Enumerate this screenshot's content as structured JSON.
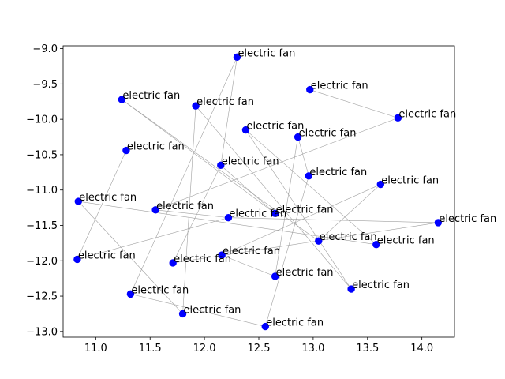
{
  "chart_data": {
    "type": "scatter",
    "title": "",
    "xlabel": "",
    "ylabel": "",
    "xlim": [
      10.7,
      14.3
    ],
    "ylim": [
      -13.08,
      -8.96
    ],
    "xticks": [
      11.0,
      11.5,
      12.0,
      12.5,
      13.0,
      13.5,
      14.0
    ],
    "xtick_labels": [
      "11.0",
      "11.5",
      "12.0",
      "12.5",
      "13.0",
      "13.5",
      "14.0"
    ],
    "yticks": [
      -9.0,
      -9.5,
      -10.0,
      -10.5,
      -11.0,
      -11.5,
      -12.0,
      -12.5,
      -13.0
    ],
    "ytick_labels": [
      "−9.0",
      "−9.5",
      "−10.0",
      "−10.5",
      "−11.0",
      "−11.5",
      "−12.0",
      "−12.5",
      "−13.0"
    ],
    "grid": false,
    "marker_color": "#0000ff",
    "edge_color": "#a0a0a0",
    "points": [
      {
        "x": 12.3,
        "y": -9.12,
        "label": "electric fan"
      },
      {
        "x": 12.97,
        "y": -9.58,
        "label": "electric fan"
      },
      {
        "x": 11.24,
        "y": -9.72,
        "label": "electric fan"
      },
      {
        "x": 11.92,
        "y": -9.81,
        "label": "electric fan"
      },
      {
        "x": 13.78,
        "y": -9.98,
        "label": "electric fan"
      },
      {
        "x": 12.38,
        "y": -10.15,
        "label": "electric fan"
      },
      {
        "x": 12.86,
        "y": -10.25,
        "label": "electric fan"
      },
      {
        "x": 11.28,
        "y": -10.44,
        "label": "electric fan"
      },
      {
        "x": 12.15,
        "y": -10.65,
        "label": "electric fan"
      },
      {
        "x": 12.96,
        "y": -10.8,
        "label": "electric fan"
      },
      {
        "x": 13.62,
        "y": -10.92,
        "label": "electric fan"
      },
      {
        "x": 10.84,
        "y": -11.16,
        "label": "electric fan"
      },
      {
        "x": 11.55,
        "y": -11.28,
        "label": "electric fan"
      },
      {
        "x": 12.65,
        "y": -11.33,
        "label": "electric fan"
      },
      {
        "x": 12.22,
        "y": -11.39,
        "label": "electric fan"
      },
      {
        "x": 14.15,
        "y": -11.46,
        "label": "electric fan"
      },
      {
        "x": 13.05,
        "y": -11.72,
        "label": "electric fan"
      },
      {
        "x": 13.58,
        "y": -11.77,
        "label": "electric fan"
      },
      {
        "x": 12.16,
        "y": -11.92,
        "label": "electric fan"
      },
      {
        "x": 10.83,
        "y": -11.98,
        "label": "electric fan"
      },
      {
        "x": 11.71,
        "y": -12.03,
        "label": "electric fan"
      },
      {
        "x": 12.65,
        "y": -12.22,
        "label": "electric fan"
      },
      {
        "x": 13.35,
        "y": -12.4,
        "label": "electric fan"
      },
      {
        "x": 11.32,
        "y": -12.47,
        "label": "electric fan"
      },
      {
        "x": 11.8,
        "y": -12.75,
        "label": "electric fan"
      },
      {
        "x": 12.56,
        "y": -12.93,
        "label": "electric fan"
      }
    ],
    "edges": [
      [
        0,
        23
      ],
      [
        0,
        8
      ],
      [
        1,
        4
      ],
      [
        2,
        16
      ],
      [
        2,
        13
      ],
      [
        3,
        24
      ],
      [
        4,
        12
      ],
      [
        5,
        17
      ],
      [
        5,
        22
      ],
      [
        6,
        21
      ],
      [
        6,
        9
      ],
      [
        7,
        19
      ],
      [
        8,
        13
      ],
      [
        9,
        25
      ],
      [
        10,
        18
      ],
      [
        11,
        17
      ],
      [
        11,
        24
      ],
      [
        12,
        14
      ],
      [
        14,
        15
      ],
      [
        15,
        20
      ],
      [
        16,
        10
      ],
      [
        19,
        14
      ],
      [
        18,
        21
      ],
      [
        20,
        8
      ],
      [
        22,
        3
      ],
      [
        23,
        25
      ]
    ]
  }
}
